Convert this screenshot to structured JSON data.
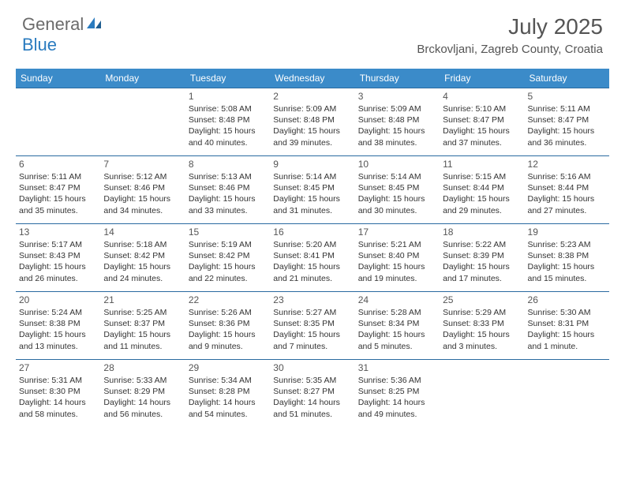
{
  "brand": {
    "part1": "General",
    "part2": "Blue"
  },
  "title": "July 2025",
  "location": "Brckovljani, Zagreb County, Croatia",
  "style": {
    "header_bg": "#3b8bc9",
    "header_text": "#ffffff",
    "row_border": "#2a6aa0",
    "body_text": "#333333",
    "daynum_color": "#555555",
    "font_family": "Arial",
    "daynum_fontsize": 12,
    "cell_fontsize": 10.5,
    "title_fontsize": 28,
    "location_fontsize": 15
  },
  "daynames": [
    "Sunday",
    "Monday",
    "Tuesday",
    "Wednesday",
    "Thursday",
    "Friday",
    "Saturday"
  ],
  "weeks": [
    [
      null,
      null,
      {
        "n": "1",
        "sr": "5:08 AM",
        "ss": "8:48 PM",
        "dh": "15",
        "dm": "40"
      },
      {
        "n": "2",
        "sr": "5:09 AM",
        "ss": "8:48 PM",
        "dh": "15",
        "dm": "39"
      },
      {
        "n": "3",
        "sr": "5:09 AM",
        "ss": "8:48 PM",
        "dh": "15",
        "dm": "38"
      },
      {
        "n": "4",
        "sr": "5:10 AM",
        "ss": "8:47 PM",
        "dh": "15",
        "dm": "37"
      },
      {
        "n": "5",
        "sr": "5:11 AM",
        "ss": "8:47 PM",
        "dh": "15",
        "dm": "36"
      }
    ],
    [
      {
        "n": "6",
        "sr": "5:11 AM",
        "ss": "8:47 PM",
        "dh": "15",
        "dm": "35"
      },
      {
        "n": "7",
        "sr": "5:12 AM",
        "ss": "8:46 PM",
        "dh": "15",
        "dm": "34"
      },
      {
        "n": "8",
        "sr": "5:13 AM",
        "ss": "8:46 PM",
        "dh": "15",
        "dm": "33"
      },
      {
        "n": "9",
        "sr": "5:14 AM",
        "ss": "8:45 PM",
        "dh": "15",
        "dm": "31"
      },
      {
        "n": "10",
        "sr": "5:14 AM",
        "ss": "8:45 PM",
        "dh": "15",
        "dm": "30"
      },
      {
        "n": "11",
        "sr": "5:15 AM",
        "ss": "8:44 PM",
        "dh": "15",
        "dm": "29"
      },
      {
        "n": "12",
        "sr": "5:16 AM",
        "ss": "8:44 PM",
        "dh": "15",
        "dm": "27"
      }
    ],
    [
      {
        "n": "13",
        "sr": "5:17 AM",
        "ss": "8:43 PM",
        "dh": "15",
        "dm": "26"
      },
      {
        "n": "14",
        "sr": "5:18 AM",
        "ss": "8:42 PM",
        "dh": "15",
        "dm": "24"
      },
      {
        "n": "15",
        "sr": "5:19 AM",
        "ss": "8:42 PM",
        "dh": "15",
        "dm": "22"
      },
      {
        "n": "16",
        "sr": "5:20 AM",
        "ss": "8:41 PM",
        "dh": "15",
        "dm": "21"
      },
      {
        "n": "17",
        "sr": "5:21 AM",
        "ss": "8:40 PM",
        "dh": "15",
        "dm": "19"
      },
      {
        "n": "18",
        "sr": "5:22 AM",
        "ss": "8:39 PM",
        "dh": "15",
        "dm": "17"
      },
      {
        "n": "19",
        "sr": "5:23 AM",
        "ss": "8:38 PM",
        "dh": "15",
        "dm": "15"
      }
    ],
    [
      {
        "n": "20",
        "sr": "5:24 AM",
        "ss": "8:38 PM",
        "dh": "15",
        "dm": "13"
      },
      {
        "n": "21",
        "sr": "5:25 AM",
        "ss": "8:37 PM",
        "dh": "15",
        "dm": "11"
      },
      {
        "n": "22",
        "sr": "5:26 AM",
        "ss": "8:36 PM",
        "dh": "15",
        "dm": "9"
      },
      {
        "n": "23",
        "sr": "5:27 AM",
        "ss": "8:35 PM",
        "dh": "15",
        "dm": "7"
      },
      {
        "n": "24",
        "sr": "5:28 AM",
        "ss": "8:34 PM",
        "dh": "15",
        "dm": "5"
      },
      {
        "n": "25",
        "sr": "5:29 AM",
        "ss": "8:33 PM",
        "dh": "15",
        "dm": "3"
      },
      {
        "n": "26",
        "sr": "5:30 AM",
        "ss": "8:31 PM",
        "dh": "15",
        "dm": "1"
      }
    ],
    [
      {
        "n": "27",
        "sr": "5:31 AM",
        "ss": "8:30 PM",
        "dh": "14",
        "dm": "58"
      },
      {
        "n": "28",
        "sr": "5:33 AM",
        "ss": "8:29 PM",
        "dh": "14",
        "dm": "56"
      },
      {
        "n": "29",
        "sr": "5:34 AM",
        "ss": "8:28 PM",
        "dh": "14",
        "dm": "54"
      },
      {
        "n": "30",
        "sr": "5:35 AM",
        "ss": "8:27 PM",
        "dh": "14",
        "dm": "51"
      },
      {
        "n": "31",
        "sr": "5:36 AM",
        "ss": "8:25 PM",
        "dh": "14",
        "dm": "49"
      },
      null,
      null
    ]
  ],
  "labels": {
    "sunrise": "Sunrise:",
    "sunset": "Sunset:",
    "daylight": "Daylight:",
    "hours": "hours",
    "and": "and",
    "minute": "minute.",
    "minutes": "minutes."
  }
}
